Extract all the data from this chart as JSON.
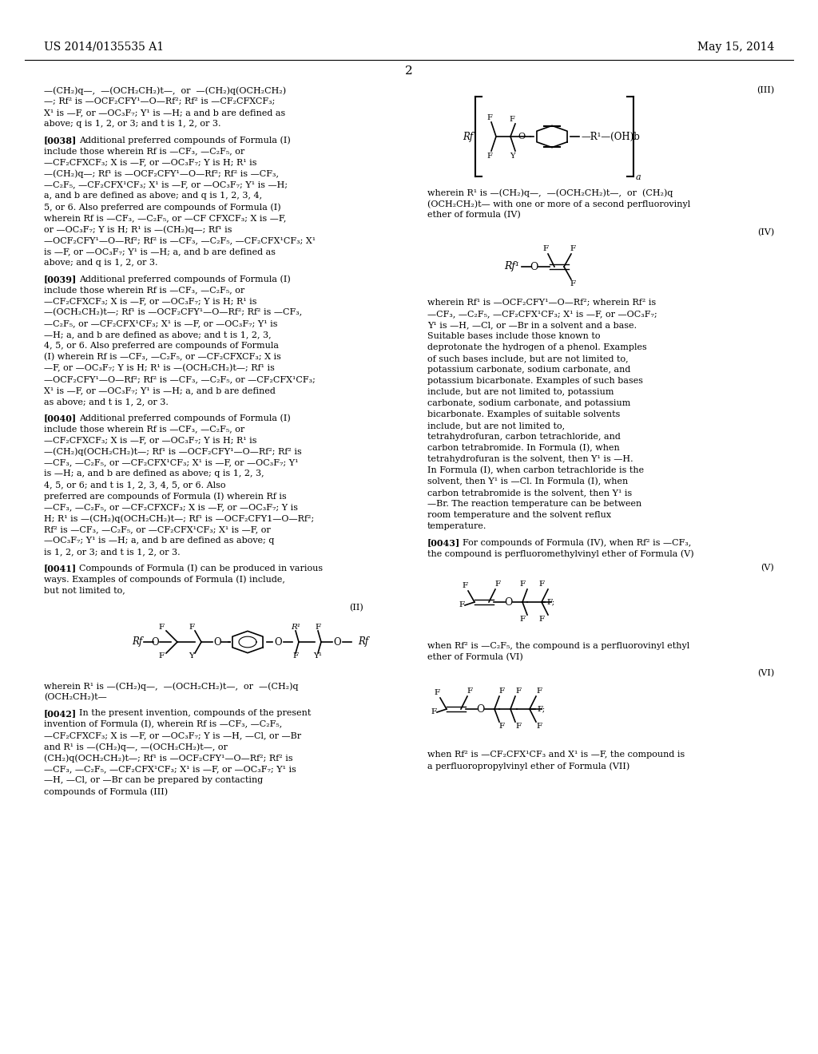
{
  "page_header_left": "US 2014/0135535 A1",
  "page_header_right": "May 15, 2014",
  "page_number": "2",
  "background_color": "#ffffff",
  "text_color": "#000000"
}
